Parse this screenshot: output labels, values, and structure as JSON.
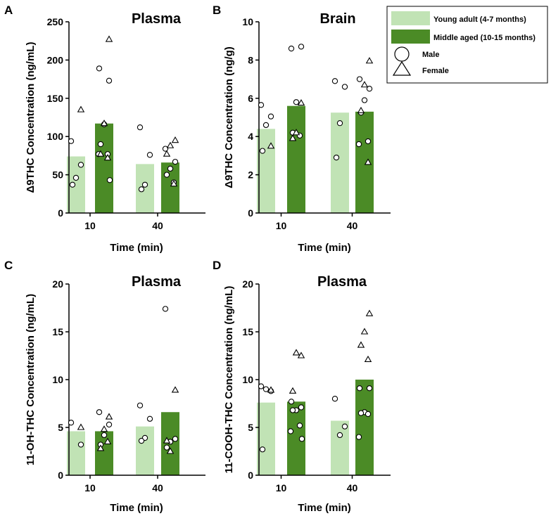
{
  "colors": {
    "young": "#c1e3b5",
    "middle": "#4b8b26",
    "marker_edge": "#000000",
    "marker_fill": "#ffffff"
  },
  "legend": {
    "young_label": "Young adult (4-7 months)",
    "middle_label": "Middle aged (10-15 months)",
    "male_label": "Male",
    "female_label": "Female"
  },
  "chart_data": [
    {
      "panel": "A",
      "type": "bar",
      "title": "Plasma",
      "xlabel": "Time (min)",
      "ylabel": "Δ9THC Concentration (ng/mL)",
      "categories": [
        "10",
        "40"
      ],
      "ylim": [
        0,
        250
      ],
      "yticks": [
        0,
        50,
        100,
        150,
        200,
        250
      ],
      "series": [
        {
          "name": "Young adult (4-7 months)",
          "values": [
            74,
            64
          ],
          "male": [
            [
              94,
              63,
              46,
              37
            ],
            [
              112,
              76,
              37,
              31
            ]
          ],
          "female": [
            [
              135
            ],
            []
          ]
        },
        {
          "name": "Middle aged (10-15 months)",
          "values": [
            117,
            66
          ],
          "male": [
            [
              189,
              173,
              116,
              90,
              77,
              77,
              43
            ],
            [
              84,
              67,
              58,
              50,
              40
            ]
          ],
          "female": [
            [
              227,
              117,
              77,
              72
            ],
            [
              95,
              88,
              77,
              38
            ]
          ]
        }
      ]
    },
    {
      "panel": "B",
      "type": "bar",
      "title": "Brain",
      "xlabel": "Time (min)",
      "ylabel": "Δ9THC Concentration (ng/g)",
      "categories": [
        "10",
        "40"
      ],
      "ylim": [
        0,
        10
      ],
      "yticks": [
        0,
        2,
        4,
        6,
        8,
        10
      ],
      "series": [
        {
          "name": "Young adult (4-7 months)",
          "values": [
            4.4,
            5.25
          ],
          "male": [
            [
              5.65,
              5.05,
              4.6,
              3.25
            ],
            [
              6.9,
              6.6,
              4.7,
              2.9
            ]
          ],
          "female": [
            [
              3.5
            ],
            []
          ]
        },
        {
          "name": "Middle aged (10-15 months)",
          "values": [
            5.6,
            5.3
          ],
          "male": [
            [
              8.6,
              8.7,
              5.8,
              4.2,
              4.05
            ],
            [
              7.0,
              6.5,
              5.9,
              5.25,
              3.75,
              3.6
            ]
          ],
          "female": [
            [
              5.75,
              4.2,
              3.9
            ],
            [
              7.95,
              6.7,
              5.35,
              2.65
            ]
          ]
        }
      ]
    },
    {
      "panel": "C",
      "type": "bar",
      "title": "Plasma",
      "xlabel": "Time (min)",
      "ylabel": "11-OH-THC Concentration (ng/mL)",
      "categories": [
        "10",
        "40"
      ],
      "ylim": [
        0,
        20
      ],
      "yticks": [
        0,
        5,
        10,
        15,
        20
      ],
      "series": [
        {
          "name": "Young adult (4-7 months)",
          "values": [
            4.6,
            5.1
          ],
          "male": [
            [
              5.5,
              3.2
            ],
            [
              7.3,
              5.9,
              3.9,
              3.6
            ]
          ],
          "female": [
            [
              5.0
            ],
            []
          ]
        },
        {
          "name": "Middle aged (10-15 months)",
          "values": [
            4.6,
            6.6
          ],
          "male": [
            [
              6.6,
              5.3,
              4.2,
              3.2
            ],
            [
              17.4,
              3.8,
              3.5,
              2.9
            ]
          ],
          "female": [
            [
              6.1,
              4.8,
              2.8,
              3.5
            ],
            [
              8.9,
              2.5,
              3.6
            ]
          ]
        }
      ]
    },
    {
      "panel": "D",
      "type": "bar",
      "title": "Plasma",
      "xlabel": "Time (min)",
      "ylabel": "11-COOH-THC Concentration (ng/mL)",
      "categories": [
        "10",
        "40"
      ],
      "ylim": [
        0,
        20
      ],
      "yticks": [
        0,
        5,
        10,
        15,
        20
      ],
      "series": [
        {
          "name": "Young adult (4-7 months)",
          "values": [
            7.6,
            5.7
          ],
          "male": [
            [
              9.3,
              8.8,
              9.0,
              2.7
            ],
            [
              8.0,
              5.1,
              4.2
            ]
          ],
          "female": [
            [
              8.9
            ],
            []
          ]
        },
        {
          "name": "Middle aged (10-15 months)",
          "values": [
            7.7,
            10.0
          ],
          "male": [
            [
              7.7,
              7.1,
              6.8,
              6.8,
              5.2,
              4.6,
              3.8
            ],
            [
              9.1,
              9.1,
              6.6,
              6.5,
              6.4,
              4.0
            ]
          ],
          "female": [
            [
              12.5,
              12.8,
              8.8
            ],
            [
              16.9,
              15.0,
              13.6,
              12.1
            ]
          ]
        }
      ]
    }
  ],
  "panel_letters": [
    "A",
    "B",
    "C",
    "D"
  ]
}
